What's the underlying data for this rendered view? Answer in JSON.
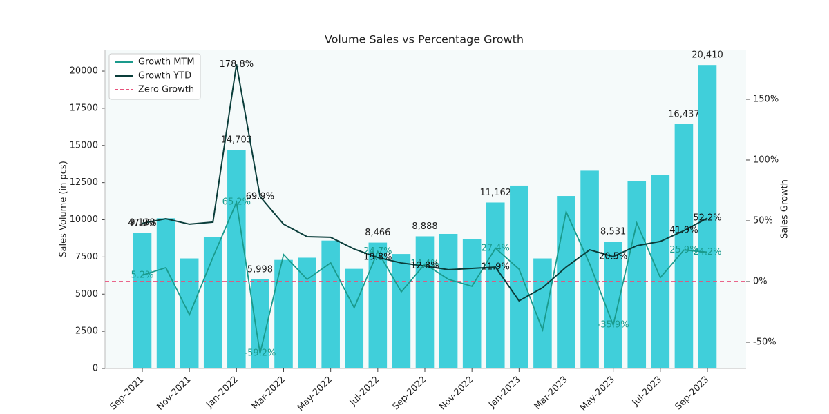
{
  "chart_data": {
    "type": "bar",
    "title": "Volume Sales vs Percentage Growth",
    "ylabel": "Sales Volume (in pcs)",
    "y2label": "Sales Growth",
    "categories": [
      "Sep-2021",
      null,
      "Nov-2021",
      null,
      "Jan-2022",
      null,
      "Mar-2022",
      null,
      "May-2022",
      null,
      "Jul-2022",
      null,
      "Sep-2022",
      null,
      "Nov-2022",
      null,
      "Jan-2023",
      null,
      "Mar-2023",
      null,
      "May-2023",
      null,
      "Jul-2023",
      null,
      "Sep-2023"
    ],
    "bars": {
      "color": "#40cfda",
      "values": [
        9138,
        10100,
        7400,
        8850,
        14703,
        5998,
        7300,
        7450,
        8600,
        6700,
        8466,
        7700,
        8888,
        9050,
        8700,
        11162,
        12300,
        7400,
        11600,
        13300,
        8531,
        12600,
        13000,
        16437,
        20410
      ],
      "value_labels": [
        "9,138",
        null,
        null,
        null,
        "14,703",
        "5,998",
        null,
        null,
        null,
        null,
        "8,466",
        null,
        "8,888",
        null,
        null,
        "11,162",
        null,
        null,
        null,
        null,
        "8,531",
        null,
        null,
        "16,437",
        "20,410"
      ]
    },
    "series": [
      {
        "name": "Growth MTM",
        "type": "line",
        "axis": "y2",
        "color": "#1a9a8c",
        "values": [
          5.2,
          11.4,
          -27.3,
          20,
          65.2,
          -59.2,
          22.2,
          1.7,
          15.4,
          -21.6,
          24.7,
          -8.5,
          14.4,
          1.8,
          -3.9,
          27.4,
          10.2,
          -39.8,
          57.4,
          14.6,
          -35.9,
          48.2,
          3.2,
          25.9,
          24.2
        ],
        "value_labels": [
          "5.2%",
          null,
          null,
          null,
          "65.2%",
          "-59.2%",
          null,
          null,
          null,
          null,
          "24.7%",
          null,
          "14.4%",
          null,
          null,
          "27.4%",
          null,
          null,
          null,
          null,
          "-35.9%",
          null,
          null,
          "25.9%",
          "24.2%"
        ]
      },
      {
        "name": "Growth YTD",
        "type": "line",
        "axis": "y2",
        "color": "#0a3d3a",
        "values": [
          47.9,
          51.7,
          47.2,
          48.9,
          178.8,
          69.9,
          47.2,
          36.9,
          36.4,
          26.7,
          19.8,
          15.3,
          12.8,
          9.7,
          10.8,
          11.9,
          -15.9,
          -5.1,
          11.9,
          26.1,
          20.5,
          29.5,
          33,
          41.9,
          52.2
        ],
        "value_labels": [
          "47.9%",
          null,
          null,
          null,
          "178.8%",
          "69.9%",
          null,
          null,
          null,
          null,
          "19.8%",
          null,
          "12.8%",
          null,
          null,
          "11.9%",
          null,
          null,
          null,
          null,
          "20.5%",
          null,
          null,
          "41.9%",
          "52.2%"
        ]
      }
    ],
    "reference_lines": [
      {
        "name": "Zero Growth",
        "value": 0,
        "axis": "y2",
        "color": "#e8507a",
        "dash": true
      }
    ],
    "ylim": [
      0,
      21440
    ],
    "yticks": [
      0,
      2500,
      5000,
      7500,
      10000,
      12500,
      15000,
      17500,
      20000
    ],
    "y2lim": [
      -71.6,
      190.9
    ],
    "y2ticks": [
      {
        "value": -50,
        "label": "-50%"
      },
      {
        "value": 0,
        "label": "0%"
      },
      {
        "value": 50,
        "label": "50%"
      },
      {
        "value": 100,
        "label": "100%"
      },
      {
        "value": 150,
        "label": "150%"
      }
    ],
    "legend": "upper left",
    "grid": false
  }
}
